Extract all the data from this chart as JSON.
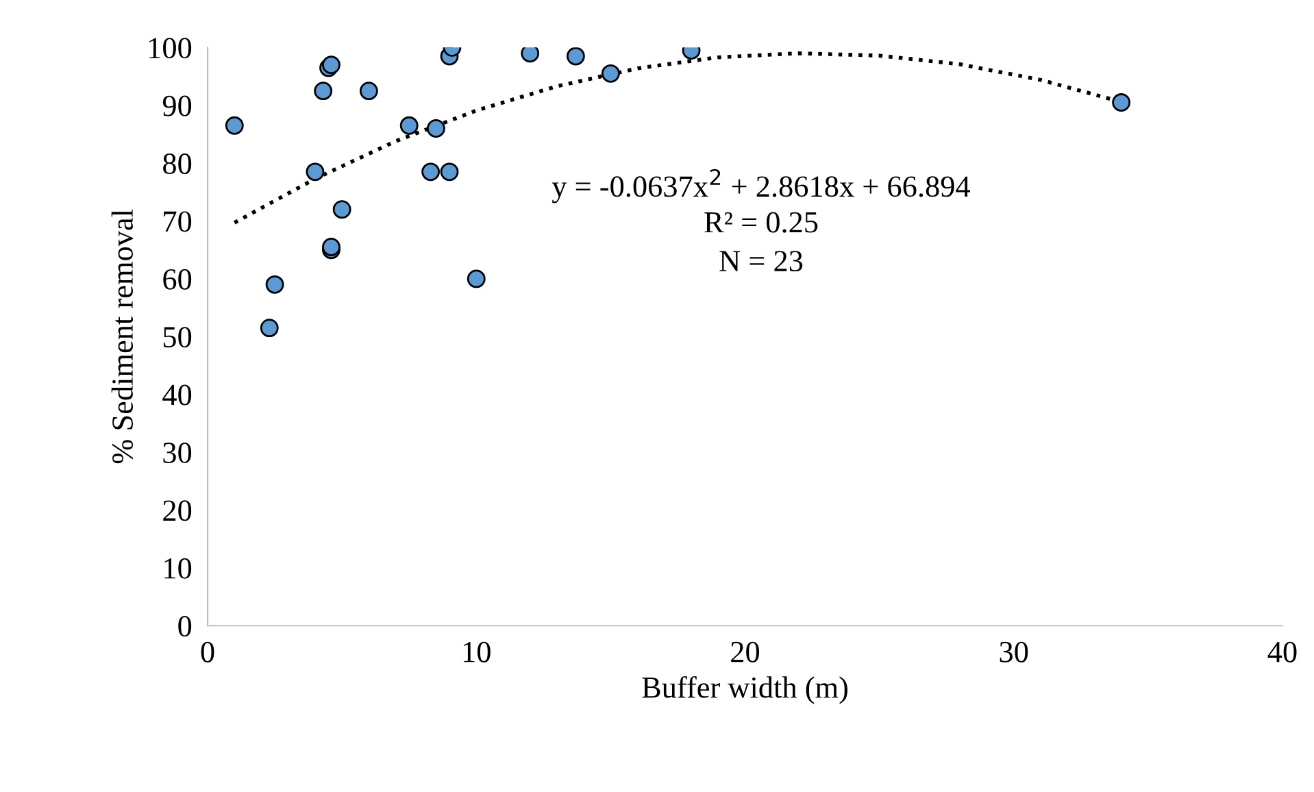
{
  "chart_data": {
    "type": "scatter",
    "xlabel": "Buffer width (m)",
    "ylabel": "% Sediment removal",
    "xlim": [
      0,
      40
    ],
    "xticks": [
      0,
      10,
      20,
      30,
      40
    ],
    "ylim": [
      0,
      100
    ],
    "yticks": [
      0,
      10,
      20,
      30,
      40,
      50,
      60,
      70,
      80,
      90,
      100
    ],
    "grid": false,
    "legend": false,
    "annotations": [
      "y = -0.0637x$^{2}$ + 2.8618x + 66.894",
      "R² = 0.25",
      "N = 23"
    ],
    "series": [
      {
        "color": "#5b9bd5",
        "marker": "circle",
        "x": [
          1.0,
          2.3,
          2.5,
          4.0,
          4.3,
          4.5,
          4.6,
          4.6,
          4.6,
          5.0,
          6.0,
          7.5,
          8.3,
          8.5,
          9.0,
          9.1,
          9.0,
          10.0,
          12.0,
          13.7,
          15.0,
          18.0,
          34.0
        ],
        "values": [
          86.5,
          51.5,
          59,
          78.5,
          92.5,
          96.5,
          97,
          65,
          65.5,
          72,
          92.5,
          86.5,
          78.5,
          86,
          98.5,
          100,
          78.5,
          60,
          99,
          98.5,
          95.5,
          99.5,
          90.5
        ]
      },
      {
        "type": "line",
        "color": "#000000",
        "line_style": "dotted",
        "marker": "none",
        "x": [
          1,
          4,
          7,
          10,
          13,
          16,
          19,
          22,
          25,
          28,
          31,
          34
        ],
        "values": [
          69.7,
          77.3,
          83.8,
          89.1,
          93.3,
          96.4,
          98.3,
          99.0,
          98.6,
          97.1,
          94.4,
          90.6
        ]
      }
    ]
  }
}
